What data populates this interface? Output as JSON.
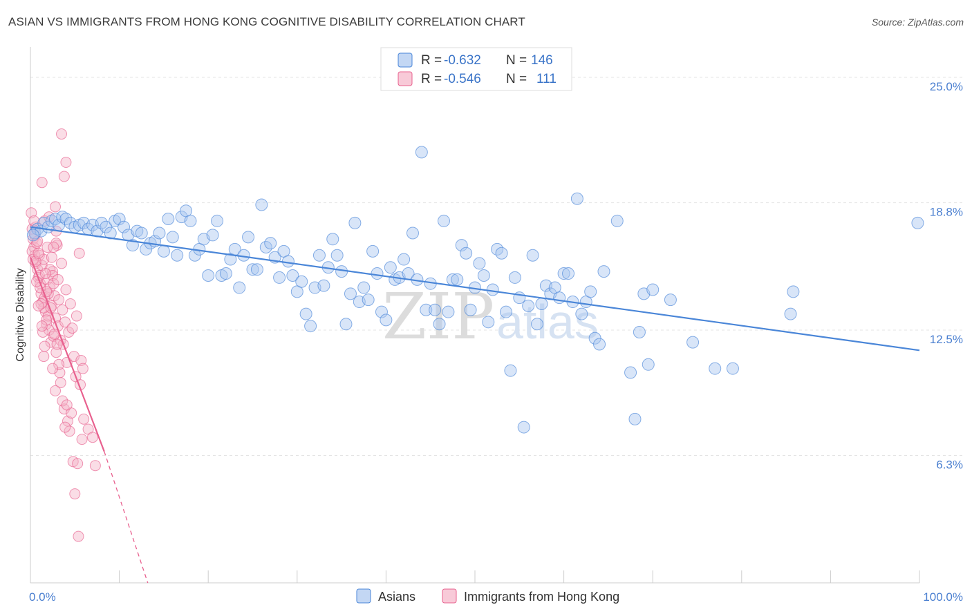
{
  "header": {
    "title": "ASIAN VS IMMIGRANTS FROM HONG KONG COGNITIVE DISABILITY CORRELATION CHART",
    "source": "Source: ZipAtlas.com"
  },
  "watermark": {
    "zip": "ZIP",
    "atlas": "atlas"
  },
  "legend_top": {
    "rows": [
      {
        "r_label": "R =",
        "r_value": "-0.632",
        "n_label": "N =",
        "n_value": "146",
        "color": "#a9c6ef"
      },
      {
        "r_label": "R =",
        "r_value": "-0.546",
        "n_label": "N =",
        "n_value": "111",
        "color": "#f5b3c8"
      }
    ]
  },
  "legend_bottom": {
    "items": [
      {
        "label": "Asians",
        "color": "#a9c6ef"
      },
      {
        "label": "Immigrants from Hong Kong",
        "color": "#f5b3c8"
      }
    ]
  },
  "chart_data": {
    "type": "scatter",
    "title": "ASIAN VS IMMIGRANTS FROM HONG KONG COGNITIVE DISABILITY CORRELATION CHART",
    "xlabel": "",
    "ylabel": "Cognitive Disability",
    "xlim": [
      0,
      100
    ],
    "ylim": [
      0,
      26.3
    ],
    "x_tick_labels": [
      "0.0%",
      "100.0%"
    ],
    "y_ticks": [
      6.3,
      12.5,
      18.8,
      25.0
    ],
    "y_tick_labels": [
      "6.3%",
      "12.5%",
      "18.8%",
      "25.0%"
    ],
    "grid": true,
    "colors": {
      "asians": "#4a86d8",
      "asians_fill": "#a9c6ef",
      "hk": "#e8608e",
      "hk_fill": "#f5b3c8",
      "axis_text": "#4a7fd0"
    },
    "series": [
      {
        "name": "Asians",
        "trend": {
          "x": [
            0,
            100
          ],
          "y": [
            17.6,
            11.5
          ]
        },
        "points": [
          [
            0.5,
            17.3
          ],
          [
            0.8,
            17.5
          ],
          [
            1.2,
            17.4
          ],
          [
            1.5,
            17.8
          ],
          [
            2.0,
            17.6
          ],
          [
            2.4,
            17.9
          ],
          [
            2.8,
            18.0
          ],
          [
            3.2,
            17.7
          ],
          [
            3.6,
            18.1
          ],
          [
            4.0,
            18.0
          ],
          [
            4.5,
            17.8
          ],
          [
            5.0,
            17.6
          ],
          [
            5.5,
            17.7
          ],
          [
            6.0,
            17.8
          ],
          [
            6.5,
            17.5
          ],
          [
            7.0,
            17.7
          ],
          [
            7.5,
            17.4
          ],
          [
            8.0,
            17.8
          ],
          [
            8.5,
            17.6
          ],
          [
            9.0,
            17.3
          ],
          [
            9.5,
            17.9
          ],
          [
            10.0,
            18.0
          ],
          [
            10.5,
            17.6
          ],
          [
            11.0,
            17.2
          ],
          [
            11.5,
            16.7
          ],
          [
            12.0,
            17.4
          ],
          [
            12.5,
            17.3
          ],
          [
            13.0,
            16.5
          ],
          [
            13.5,
            16.8
          ],
          [
            14.0,
            16.9
          ],
          [
            14.5,
            17.3
          ],
          [
            15.0,
            16.4
          ],
          [
            15.5,
            18.0
          ],
          [
            16.0,
            17.1
          ],
          [
            16.5,
            16.2
          ],
          [
            17.0,
            18.1
          ],
          [
            17.5,
            18.4
          ],
          [
            18.0,
            17.9
          ],
          [
            18.5,
            16.2
          ],
          [
            19.0,
            16.5
          ],
          [
            19.5,
            17.0
          ],
          [
            20.0,
            15.2
          ],
          [
            20.5,
            17.2
          ],
          [
            21.0,
            17.9
          ],
          [
            21.5,
            15.2
          ],
          [
            22.0,
            15.3
          ],
          [
            22.5,
            16.0
          ],
          [
            23.0,
            16.5
          ],
          [
            23.5,
            14.6
          ],
          [
            24.0,
            16.2
          ],
          [
            24.5,
            17.1
          ],
          [
            25.0,
            15.5
          ],
          [
            25.5,
            15.5
          ],
          [
            26.0,
            18.7
          ],
          [
            26.5,
            16.6
          ],
          [
            27.0,
            16.8
          ],
          [
            27.5,
            16.1
          ],
          [
            28.0,
            15.1
          ],
          [
            28.5,
            16.4
          ],
          [
            29.0,
            15.9
          ],
          [
            29.5,
            15.2
          ],
          [
            30.0,
            14.4
          ],
          [
            30.5,
            14.9
          ],
          [
            31.0,
            13.3
          ],
          [
            31.5,
            12.7
          ],
          [
            32.0,
            14.6
          ],
          [
            32.5,
            16.2
          ],
          [
            33.0,
            14.7
          ],
          [
            33.5,
            15.6
          ],
          [
            34.0,
            17.0
          ],
          [
            34.5,
            16.2
          ],
          [
            35.0,
            15.4
          ],
          [
            35.5,
            12.8
          ],
          [
            36.0,
            14.3
          ],
          [
            36.5,
            17.8
          ],
          [
            37.0,
            13.9
          ],
          [
            37.5,
            14.6
          ],
          [
            38.0,
            14.0
          ],
          [
            38.5,
            16.4
          ],
          [
            39.0,
            15.3
          ],
          [
            39.5,
            13.4
          ],
          [
            40.0,
            13.0
          ],
          [
            40.5,
            15.6
          ],
          [
            41.0,
            15.0
          ],
          [
            41.5,
            15.1
          ],
          [
            42.0,
            16.0
          ],
          [
            42.5,
            15.3
          ],
          [
            43.0,
            17.3
          ],
          [
            43.5,
            15.0
          ],
          [
            44.0,
            21.3
          ],
          [
            44.5,
            13.5
          ],
          [
            45.0,
            14.8
          ],
          [
            45.5,
            13.5
          ],
          [
            46.0,
            12.8
          ],
          [
            46.5,
            17.9
          ],
          [
            47.0,
            13.4
          ],
          [
            47.5,
            15.0
          ],
          [
            48.0,
            15.0
          ],
          [
            48.5,
            16.7
          ],
          [
            49.0,
            16.3
          ],
          [
            49.5,
            13.5
          ],
          [
            50.0,
            14.6
          ],
          [
            50.5,
            15.8
          ],
          [
            51.0,
            15.2
          ],
          [
            51.5,
            12.9
          ],
          [
            52.0,
            14.5
          ],
          [
            52.5,
            16.5
          ],
          [
            53.0,
            16.3
          ],
          [
            53.5,
            13.4
          ],
          [
            54.0,
            10.5
          ],
          [
            54.5,
            15.1
          ],
          [
            55.0,
            14.1
          ],
          [
            55.5,
            7.7
          ],
          [
            56.0,
            13.7
          ],
          [
            56.5,
            16.2
          ],
          [
            57.0,
            12.8
          ],
          [
            57.5,
            13.8
          ],
          [
            58.0,
            14.7
          ],
          [
            58.5,
            14.3
          ],
          [
            59.0,
            14.6
          ],
          [
            59.5,
            14.1
          ],
          [
            60.0,
            15.3
          ],
          [
            60.5,
            15.3
          ],
          [
            61.0,
            13.9
          ],
          [
            61.5,
            19.0
          ],
          [
            62.0,
            13.3
          ],
          [
            62.5,
            13.9
          ],
          [
            63.0,
            14.4
          ],
          [
            63.5,
            12.1
          ],
          [
            64.0,
            11.8
          ],
          [
            64.5,
            15.4
          ],
          [
            66.0,
            17.9
          ],
          [
            67.5,
            10.4
          ],
          [
            68.0,
            8.1
          ],
          [
            68.5,
            12.4
          ],
          [
            69.0,
            14.3
          ],
          [
            69.5,
            10.8
          ],
          [
            70.0,
            14.5
          ],
          [
            72.0,
            14.0
          ],
          [
            74.5,
            11.9
          ],
          [
            77.0,
            10.6
          ],
          [
            79.0,
            10.6
          ],
          [
            85.5,
            13.3
          ],
          [
            85.8,
            14.4
          ],
          [
            99.8,
            17.8
          ],
          [
            0.3,
            17.2
          ]
        ]
      },
      {
        "name": "Immigrants from Hong Kong",
        "trend": {
          "x": [
            0,
            8.3
          ],
          "y": [
            16.1,
            6.5
          ],
          "dash_to": [
            13.2,
            0.0
          ]
        },
        "points": [
          [
            0.1,
            18.3
          ],
          [
            0.2,
            17.5
          ],
          [
            0.3,
            17.0
          ],
          [
            0.4,
            16.6
          ],
          [
            0.5,
            16.2
          ],
          [
            0.6,
            15.8
          ],
          [
            0.2,
            16.4
          ],
          [
            0.3,
            16.0
          ],
          [
            0.5,
            17.2
          ],
          [
            0.7,
            16.8
          ],
          [
            0.8,
            15.5
          ],
          [
            0.9,
            15.1
          ],
          [
            1.0,
            16.2
          ],
          [
            1.1,
            14.8
          ],
          [
            1.2,
            14.3
          ],
          [
            1.3,
            15.7
          ],
          [
            1.4,
            13.9
          ],
          [
            1.5,
            16.0
          ],
          [
            1.6,
            14.1
          ],
          [
            1.7,
            13.4
          ],
          [
            1.8,
            12.8
          ],
          [
            1.9,
            15.0
          ],
          [
            2.0,
            13.2
          ],
          [
            2.1,
            12.5
          ],
          [
            2.2,
            14.6
          ],
          [
            2.3,
            11.9
          ],
          [
            2.4,
            13.7
          ],
          [
            2.5,
            15.4
          ],
          [
            2.6,
            12.2
          ],
          [
            2.7,
            14.2
          ],
          [
            2.8,
            13.1
          ],
          [
            2.9,
            11.4
          ],
          [
            3.0,
            16.7
          ],
          [
            3.1,
            12.7
          ],
          [
            3.2,
            14.0
          ],
          [
            3.3,
            10.4
          ],
          [
            3.4,
            12.0
          ],
          [
            3.5,
            15.8
          ],
          [
            3.6,
            13.5
          ],
          [
            3.7,
            11.8
          ],
          [
            3.8,
            8.6
          ],
          [
            3.9,
            12.9
          ],
          [
            4.0,
            14.5
          ],
          [
            4.1,
            10.9
          ],
          [
            4.2,
            8.0
          ],
          [
            4.3,
            12.4
          ],
          [
            4.4,
            7.5
          ],
          [
            4.5,
            13.8
          ],
          [
            4.6,
            8.4
          ],
          [
            4.7,
            12.6
          ],
          [
            4.8,
            6.0
          ],
          [
            4.9,
            11.2
          ],
          [
            5.0,
            4.4
          ],
          [
            5.1,
            10.2
          ],
          [
            5.2,
            13.2
          ],
          [
            5.3,
            5.9
          ],
          [
            5.4,
            2.3
          ],
          [
            5.5,
            16.3
          ],
          [
            5.6,
            9.8
          ],
          [
            5.7,
            11.0
          ],
          [
            5.8,
            7.1
          ],
          [
            5.9,
            10.6
          ],
          [
            6.0,
            8.1
          ],
          [
            6.5,
            7.6
          ],
          [
            7.0,
            7.2
          ],
          [
            7.3,
            5.8
          ],
          [
            3.5,
            22.2
          ],
          [
            3.8,
            20.1
          ],
          [
            4.0,
            20.8
          ],
          [
            2.8,
            18.6
          ],
          [
            2.9,
            16.8
          ],
          [
            1.3,
            19.8
          ],
          [
            1.6,
            17.9
          ],
          [
            1.9,
            16.6
          ],
          [
            2.2,
            15.5
          ],
          [
            2.5,
            15.2
          ],
          [
            2.6,
            14.8
          ],
          [
            2.0,
            14.3
          ],
          [
            1.5,
            13.6
          ],
          [
            1.8,
            13.0
          ],
          [
            0.6,
            15.9
          ],
          [
            0.9,
            16.3
          ],
          [
            1.0,
            15.2
          ],
          [
            1.1,
            14.6
          ],
          [
            1.2,
            13.8
          ],
          [
            1.4,
            12.4
          ],
          [
            1.5,
            11.2
          ],
          [
            0.8,
            16.9
          ],
          [
            0.6,
            17.6
          ],
          [
            0.4,
            17.9
          ],
          [
            2.7,
            12.3
          ],
          [
            3.0,
            11.8
          ],
          [
            3.2,
            10.8
          ],
          [
            3.4,
            9.9
          ],
          [
            3.6,
            9.0
          ],
          [
            2.9,
            17.4
          ],
          [
            2.1,
            18.1
          ],
          [
            1.7,
            15.3
          ],
          [
            2.3,
            13.6
          ],
          [
            2.4,
            16.1
          ],
          [
            3.1,
            15.0
          ],
          [
            0.7,
            14.9
          ],
          [
            0.9,
            13.7
          ],
          [
            1.3,
            12.7
          ],
          [
            1.6,
            11.7
          ],
          [
            2.5,
            10.6
          ],
          [
            2.8,
            9.5
          ],
          [
            3.9,
            7.7
          ],
          [
            4.1,
            8.8
          ],
          [
            1.8,
            14.4
          ],
          [
            2.6,
            16.6
          ]
        ]
      }
    ]
  }
}
